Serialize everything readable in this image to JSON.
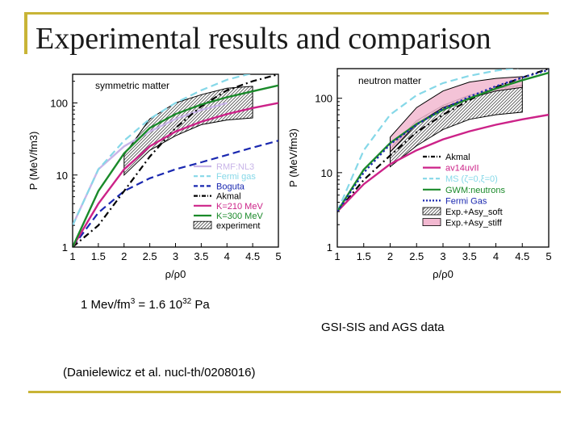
{
  "slide": {
    "title": "Experimental results and comparison",
    "conversion": {
      "prefix": "1 Mev/fm",
      "prefix_sup": "3",
      "middle": " = 1.6 10",
      "middle_sup": "32",
      "suffix": " Pa"
    },
    "data_source": "GSI-SIS and AGS data",
    "reference": "(Danielewicz et al. nucl-th/0208016)"
  },
  "colors": {
    "accent_rule": "#c8b436",
    "rmf": "#c8b4e8",
    "fermi_gas": "#86d8e8",
    "bogut": "#1a28b0",
    "akmal": "#000000",
    "k210": "#cc2288",
    "k300": "#1a8a2a",
    "asy_stiff": "#f2b8d0"
  },
  "chart_data": [
    {
      "type": "line",
      "panel_label": "symmetric matter",
      "xlabel": "ρ/ρ0",
      "ylabel": "P (MeV/fm3)",
      "xlim": [
        1,
        5
      ],
      "ylim": [
        1,
        250
      ],
      "yscale": "log",
      "xticks": [
        "1",
        "1.5",
        "2",
        "2.5",
        "3",
        "3.5",
        "4",
        "4.5",
        "5"
      ],
      "yticks": [
        "1",
        "10",
        "100"
      ],
      "legend_position": "bottom-right",
      "series": [
        {
          "name": "RMF:NL3",
          "style": "solid",
          "color": "#c8b4e8",
          "points": [
            [
              1.0,
              2
            ],
            [
              1.5,
              12
            ],
            [
              2.0,
              25
            ],
            [
              2.5,
              40
            ],
            [
              3.0,
              60
            ],
            [
              3.5,
              80
            ],
            [
              4.0,
              100
            ]
          ]
        },
        {
          "name": "Fermi gas",
          "style": "dashed",
          "color": "#86d8e8",
          "points": [
            [
              1.0,
              2
            ],
            [
              1.5,
              12
            ],
            [
              2.0,
              30
            ],
            [
              2.5,
              60
            ],
            [
              3.0,
              100
            ],
            [
              3.5,
              150
            ],
            [
              4.0,
              210
            ],
            [
              4.5,
              260
            ]
          ]
        },
        {
          "name": "Boguta",
          "style": "dashed",
          "color": "#1a28b0",
          "points": [
            [
              1.0,
              1
            ],
            [
              1.5,
              3
            ],
            [
              2.0,
              6
            ],
            [
              2.5,
              9
            ],
            [
              3.0,
              12
            ],
            [
              3.5,
              15
            ],
            [
              4.0,
              19
            ],
            [
              4.5,
              24
            ],
            [
              5.0,
              30
            ]
          ]
        },
        {
          "name": "Akmal",
          "style": "dashdot",
          "color": "#000000",
          "points": [
            [
              1.0,
              1
            ],
            [
              1.5,
              2
            ],
            [
              2.0,
              6
            ],
            [
              2.5,
              18
            ],
            [
              3.0,
              45
            ],
            [
              3.5,
              90
            ],
            [
              4.0,
              150
            ],
            [
              4.5,
              200
            ],
            [
              5.0,
              250
            ]
          ]
        },
        {
          "name": "K=210 MeV",
          "style": "solid",
          "color": "#cc2288",
          "points": [
            [
              1.0,
              1
            ],
            [
              1.5,
              4
            ],
            [
              2.0,
              12
            ],
            [
              2.5,
              25
            ],
            [
              3.0,
              40
            ],
            [
              3.5,
              55
            ],
            [
              4.0,
              70
            ],
            [
              4.5,
              85
            ],
            [
              5.0,
              100
            ]
          ]
        },
        {
          "name": "K=300 MeV",
          "style": "solid",
          "color": "#1a8a2a",
          "points": [
            [
              1.0,
              1
            ],
            [
              1.5,
              6
            ],
            [
              2.0,
              20
            ],
            [
              2.5,
              45
            ],
            [
              3.0,
              70
            ],
            [
              3.5,
              95
            ],
            [
              4.0,
              120
            ],
            [
              4.5,
              145
            ],
            [
              5.0,
              175
            ]
          ]
        }
      ],
      "bands": [
        {
          "name": "experiment",
          "pattern": "hatched",
          "lower": [
            [
              2.0,
              10
            ],
            [
              2.5,
              22
            ],
            [
              3.0,
              35
            ],
            [
              3.5,
              50
            ],
            [
              4.0,
              58
            ],
            [
              4.5,
              62
            ]
          ],
          "upper": [
            [
              2.0,
              19
            ],
            [
              2.5,
              60
            ],
            [
              3.0,
              100
            ],
            [
              3.5,
              130
            ],
            [
              4.0,
              160
            ],
            [
              4.5,
              170
            ]
          ]
        }
      ]
    },
    {
      "type": "line",
      "panel_label": "neutron matter",
      "xlabel": "ρ/ρ0",
      "ylabel": "P (MeV/fm3)",
      "xlim": [
        1,
        5
      ],
      "ylim": [
        1,
        250
      ],
      "yscale": "log",
      "xticks": [
        "1",
        "1.5",
        "2",
        "2.5",
        "3",
        "3.5",
        "4",
        "4.5",
        "5"
      ],
      "yticks": [
        "1",
        "10",
        "100"
      ],
      "legend_position": "right",
      "series": [
        {
          "name": "Akmal",
          "style": "dashdot",
          "color": "#000000",
          "points": [
            [
              1.0,
              3
            ],
            [
              1.5,
              8
            ],
            [
              2.0,
              17
            ],
            [
              2.5,
              35
            ],
            [
              3.0,
              60
            ],
            [
              3.5,
              95
            ],
            [
              4.0,
              140
            ],
            [
              4.5,
              190
            ],
            [
              5.0,
              250
            ]
          ]
        },
        {
          "name": "av14uvII",
          "style": "solid",
          "color": "#cc2288",
          "points": [
            [
              1.0,
              3
            ],
            [
              1.5,
              7
            ],
            [
              2.0,
              13
            ],
            [
              2.5,
              20
            ],
            [
              3.0,
              28
            ],
            [
              3.5,
              36
            ],
            [
              4.0,
              44
            ],
            [
              4.5,
              52
            ],
            [
              5.0,
              60
            ]
          ]
        },
        {
          "name": "MS (ζ=0,ξ=0)",
          "style": "dashed",
          "color": "#86d8e8",
          "points": [
            [
              1.0,
              3
            ],
            [
              1.5,
              20
            ],
            [
              2.0,
              60
            ],
            [
              2.5,
              110
            ],
            [
              3.0,
              160
            ],
            [
              3.5,
              200
            ],
            [
              4.0,
              235
            ],
            [
              4.5,
              260
            ]
          ]
        },
        {
          "name": "GWM:neutrons",
          "style": "solid",
          "color": "#1a8a2a",
          "points": [
            [
              1.0,
              3
            ],
            [
              1.5,
              11
            ],
            [
              2.0,
              25
            ],
            [
              2.5,
              45
            ],
            [
              3.0,
              70
            ],
            [
              3.5,
              100
            ],
            [
              4.0,
              135
            ],
            [
              4.5,
              175
            ],
            [
              5.0,
              220
            ]
          ]
        },
        {
          "name": "Fermi Gas",
          "style": "dotted",
          "color": "#1a28b0",
          "points": [
            [
              1.0,
              3
            ],
            [
              1.5,
              10
            ],
            [
              2.0,
              24
            ],
            [
              2.5,
              44
            ],
            [
              3.0,
              72
            ],
            [
              3.5,
              105
            ],
            [
              4.0,
              145
            ],
            [
              4.5,
              190
            ],
            [
              5.0,
              240
            ]
          ]
        }
      ],
      "bands": [
        {
          "name": "Exp.+Asy_soft",
          "pattern": "hatched",
          "lower": [
            [
              2.0,
              12
            ],
            [
              2.5,
              23
            ],
            [
              3.0,
              38
            ],
            [
              3.5,
              52
            ],
            [
              4.0,
              60
            ],
            [
              4.5,
              65
            ]
          ],
          "upper": [
            [
              2.0,
              21
            ],
            [
              2.5,
              50
            ],
            [
              3.0,
              80
            ],
            [
              3.5,
              110
            ],
            [
              4.0,
              135
            ],
            [
              4.5,
              150
            ]
          ]
        },
        {
          "name": "Exp.+Asy_stiff",
          "pattern": "filled",
          "lower": [
            [
              2.0,
              19
            ],
            [
              2.5,
              45
            ],
            [
              3.0,
              75
            ],
            [
              3.5,
              100
            ],
            [
              4.0,
              125
            ],
            [
              4.5,
              140
            ]
          ],
          "upper": [
            [
              2.0,
              30
            ],
            [
              2.5,
              75
            ],
            [
              3.0,
              125
            ],
            [
              3.5,
              165
            ],
            [
              4.0,
              185
            ],
            [
              4.5,
              195
            ]
          ]
        }
      ]
    }
  ]
}
